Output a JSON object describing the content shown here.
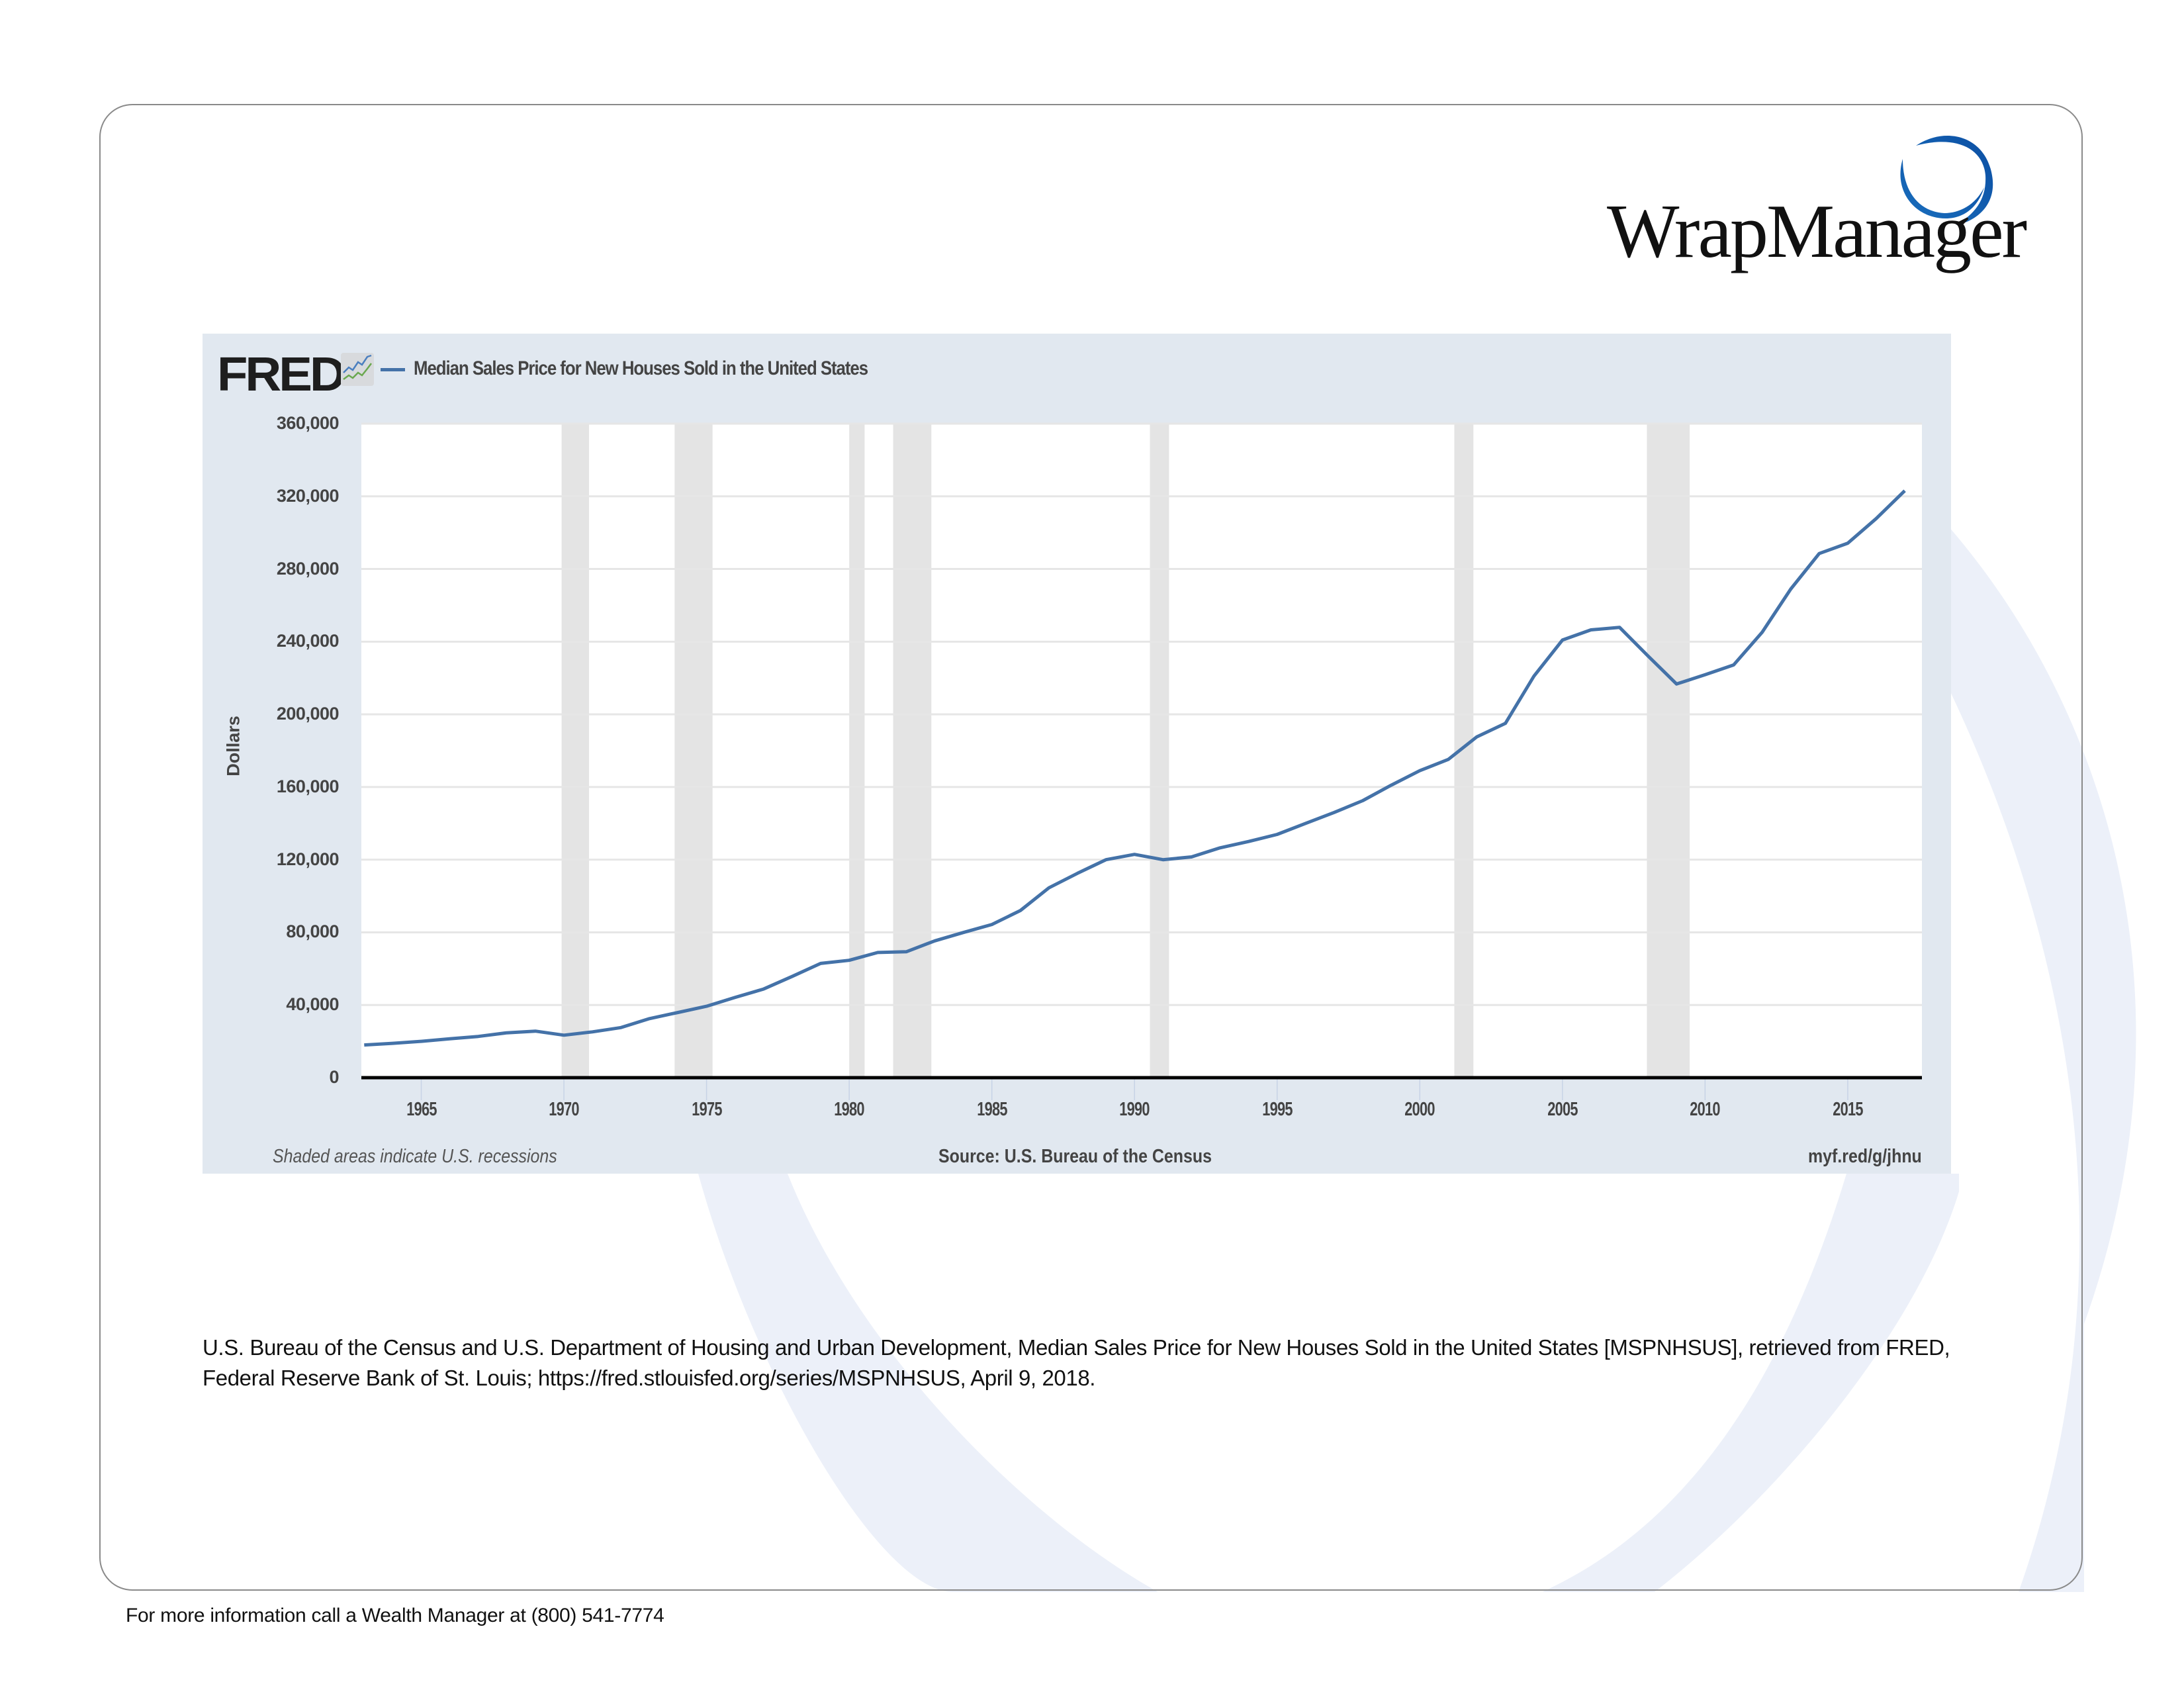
{
  "brand": {
    "name": "WrapManager",
    "colors": {
      "swoosh_dark": "#0b4ea2",
      "swoosh_light": "#1a6fbe",
      "text": "#111111",
      "background_arc": "#ecf0f9"
    }
  },
  "fred": {
    "logo_text": "FRED",
    "series_line_color": "#4472a8",
    "panel_color": "#e1e8f0",
    "recession_color": "#e4e4e4"
  },
  "chart_data": {
    "type": "line",
    "title": "Median Sales Price for New Houses Sold in the United States",
    "xlabel": "",
    "ylabel": "Dollars",
    "xlim": [
      1962.9,
      2017.6
    ],
    "ylim": [
      0,
      360000
    ],
    "grid": true,
    "legend": "top-left",
    "y_ticks": [
      0,
      40000,
      80000,
      120000,
      160000,
      200000,
      240000,
      280000,
      320000,
      360000
    ],
    "y_tick_labels": [
      "0",
      "40,000",
      "80,000",
      "120,000",
      "160,000",
      "200,000",
      "240,000",
      "280,000",
      "320,000",
      "360,000"
    ],
    "x_ticks": [
      1965,
      1970,
      1975,
      1980,
      1985,
      1990,
      1995,
      2000,
      2005,
      2010,
      2015
    ],
    "x_tick_labels": [
      "1965",
      "1970",
      "1975",
      "1980",
      "1985",
      "1990",
      "1995",
      "2000",
      "2005",
      "2010",
      "2015"
    ],
    "recessions": [
      [
        1969.92,
        1970.88
      ],
      [
        1973.88,
        1975.21
      ],
      [
        1980.0,
        1980.54
      ],
      [
        1981.54,
        1982.88
      ],
      [
        1990.54,
        1991.21
      ],
      [
        2001.21,
        2001.88
      ],
      [
        2007.96,
        2009.46
      ]
    ],
    "series": [
      {
        "name": "Median Sales Price for New Houses Sold in the United States",
        "x": [
          1963,
          1964,
          1965,
          1966,
          1967,
          1968,
          1969,
          1970,
          1971,
          1972,
          1973,
          1974,
          1975,
          1976,
          1977,
          1978,
          1979,
          1980,
          1981,
          1982,
          1983,
          1984,
          1985,
          1986,
          1987,
          1988,
          1989,
          1990,
          1991,
          1992,
          1993,
          1994,
          1995,
          1996,
          1997,
          1998,
          1999,
          2000,
          2001,
          2002,
          2003,
          2004,
          2005,
          2006,
          2007,
          2008,
          2009,
          2010,
          2011,
          2012,
          2013,
          2014,
          2015,
          2016,
          2017
        ],
        "values": [
          18000,
          18900,
          20000,
          21400,
          22700,
          24700,
          25600,
          23400,
          25200,
          27600,
          32500,
          35900,
          39300,
          44200,
          48800,
          55700,
          62900,
          64600,
          68900,
          69300,
          75300,
          79900,
          84300,
          92000,
          104500,
          112500,
          120000,
          122900,
          120000,
          121500,
          126500,
          130000,
          133900,
          140000,
          146000,
          152500,
          161000,
          169000,
          175200,
          187600,
          195000,
          221000,
          240900,
          246500,
          247900,
          232100,
          216700,
          221800,
          227200,
          245200,
          268900,
          288500,
          294200,
          307800,
          323100
        ]
      }
    ],
    "notes": {
      "recessions": "Shaded areas indicate U.S. recessions",
      "source": "Source: U.S. Bureau of the Census",
      "link": "myf.red/g/jhnu"
    }
  },
  "citation": "U.S. Bureau of the Census and U.S. Department of Housing and Urban Development, Median Sales Price for New Houses Sold in the United States [MSPNHSUS], retrieved from FRED, Federal Reserve Bank of St. Louis; https://fred.stlouisfed.org/series/MSPNHSUS, April 9, 2018.",
  "footer": "For more information call a Wealth Manager at (800) 541-7774"
}
